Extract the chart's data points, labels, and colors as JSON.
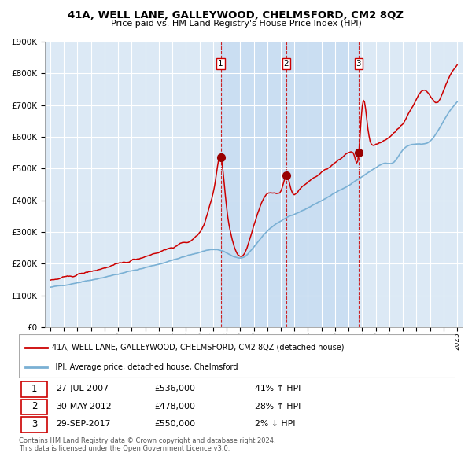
{
  "title": "41A, WELL LANE, GALLEYWOOD, CHELMSFORD, CM2 8QZ",
  "subtitle": "Price paid vs. HM Land Registry's House Price Index (HPI)",
  "title_fontsize": 9.5,
  "subtitle_fontsize": 8,
  "background_color": "#ffffff",
  "plot_bg_color": "#dce9f5",
  "grid_color": "#ffffff",
  "red_line_color": "#cc0000",
  "blue_line_color": "#7ab0d4",
  "sale_marker_color": "#990000",
  "dashed_line_color": "#cc0000",
  "ylim": [
    0,
    900000
  ],
  "yticks": [
    0,
    100000,
    200000,
    300000,
    400000,
    500000,
    600000,
    700000,
    800000,
    900000
  ],
  "ytick_labels": [
    "£0",
    "£100K",
    "£200K",
    "£300K",
    "£400K",
    "£500K",
    "£600K",
    "£700K",
    "£800K",
    "£900K"
  ],
  "sale_dates": [
    2007.57,
    2012.41,
    2017.74
  ],
  "sale_prices": [
    536000,
    478000,
    550000
  ],
  "sale_labels": [
    "1",
    "2",
    "3"
  ],
  "legend_label_red": "41A, WELL LANE, GALLEYWOOD, CHELMSFORD, CM2 8QZ (detached house)",
  "legend_label_blue": "HPI: Average price, detached house, Chelmsford",
  "table_data": [
    {
      "num": "1",
      "date": "27-JUL-2007",
      "price": "£536,000",
      "hpi": "41% ↑ HPI"
    },
    {
      "num": "2",
      "date": "30-MAY-2012",
      "price": "£478,000",
      "hpi": "28% ↑ HPI"
    },
    {
      "num": "3",
      "date": "29-SEP-2017",
      "price": "£550,000",
      "hpi": "2% ↓ HPI"
    }
  ],
  "footnote": "Contains HM Land Registry data © Crown copyright and database right 2024.\nThis data is licensed under the Open Government Licence v3.0.",
  "shade_color": "#aaccee",
  "shade_alpha": 0.35
}
